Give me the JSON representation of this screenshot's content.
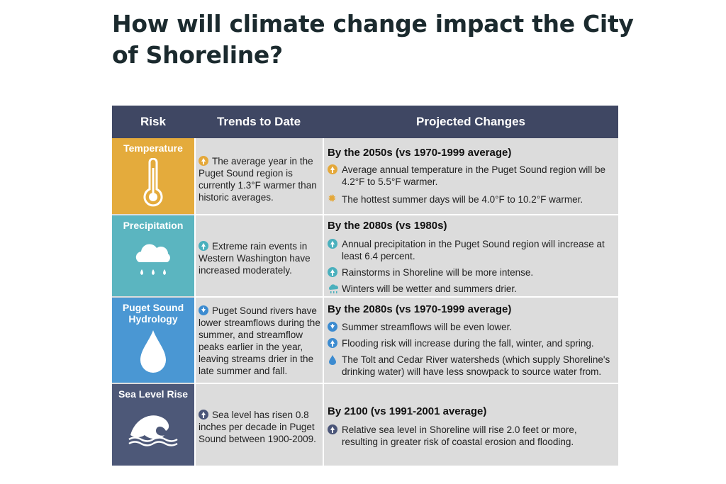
{
  "page": {
    "title": "How will climate change impact the City of Shoreline?"
  },
  "table": {
    "headers": {
      "risk": "Risk",
      "trends": "Trends to Date",
      "projected": "Projected Changes"
    },
    "rows": [
      {
        "risk": "Temperature",
        "color": "#e4ab3c",
        "icon": "thermometer-icon",
        "trend": "The average year in the Puget Sound region is currently 1.3°F warmer than historic averages.",
        "projected_title": "By the 2050s (vs 1970-1999 average)",
        "items": [
          "Average annual temperature in the Puget Sound region will be 4.2°F to 5.5°F warmer.",
          "The hottest summer days will be 4.0°F to 10.2°F warmer."
        ]
      },
      {
        "risk": "Precipitation",
        "color": "#5bb5c0",
        "icon": "rain-cloud-icon",
        "trend": "Extreme rain events in Western Washington have increased moderately.",
        "projected_title": "By the 2080s (vs 1980s)",
        "items": [
          "Annual precipitation in the Puget Sound region will increase at least 6.4 percent.",
          "Rainstorms in Shoreline will be more intense.",
          "Winters will be wetter and summers drier."
        ]
      },
      {
        "risk": "Puget Sound Hydrology",
        "color": "#4a97d3",
        "icon": "water-drop-icon",
        "trend": "Puget Sound rivers have lower streamflows during the summer, and streamflow peaks earlier in the year, leaving streams drier in the late summer and fall.",
        "projected_title": "By the 2080s (vs 1970-1999 average)",
        "items": [
          "Summer streamflows will be even lower.",
          "Flooding risk will increase during the fall, winter, and spring.",
          "The Tolt and Cedar River watersheds (which supply Shoreline's drinking water) will have less snowpack to source water from."
        ]
      },
      {
        "risk": "Sea Level Rise",
        "color": "#4d5878",
        "icon": "wave-icon",
        "trend": "Sea level has risen 0.8 inches per decade in Puget Sound between 1900-2009.",
        "projected_title": "By 2100 (vs 1991-2001 average)",
        "items": [
          "Relative sea level in Shoreline will rise 2.0 feet or more, resulting in greater risk of coastal erosion and flooding."
        ]
      }
    ]
  }
}
